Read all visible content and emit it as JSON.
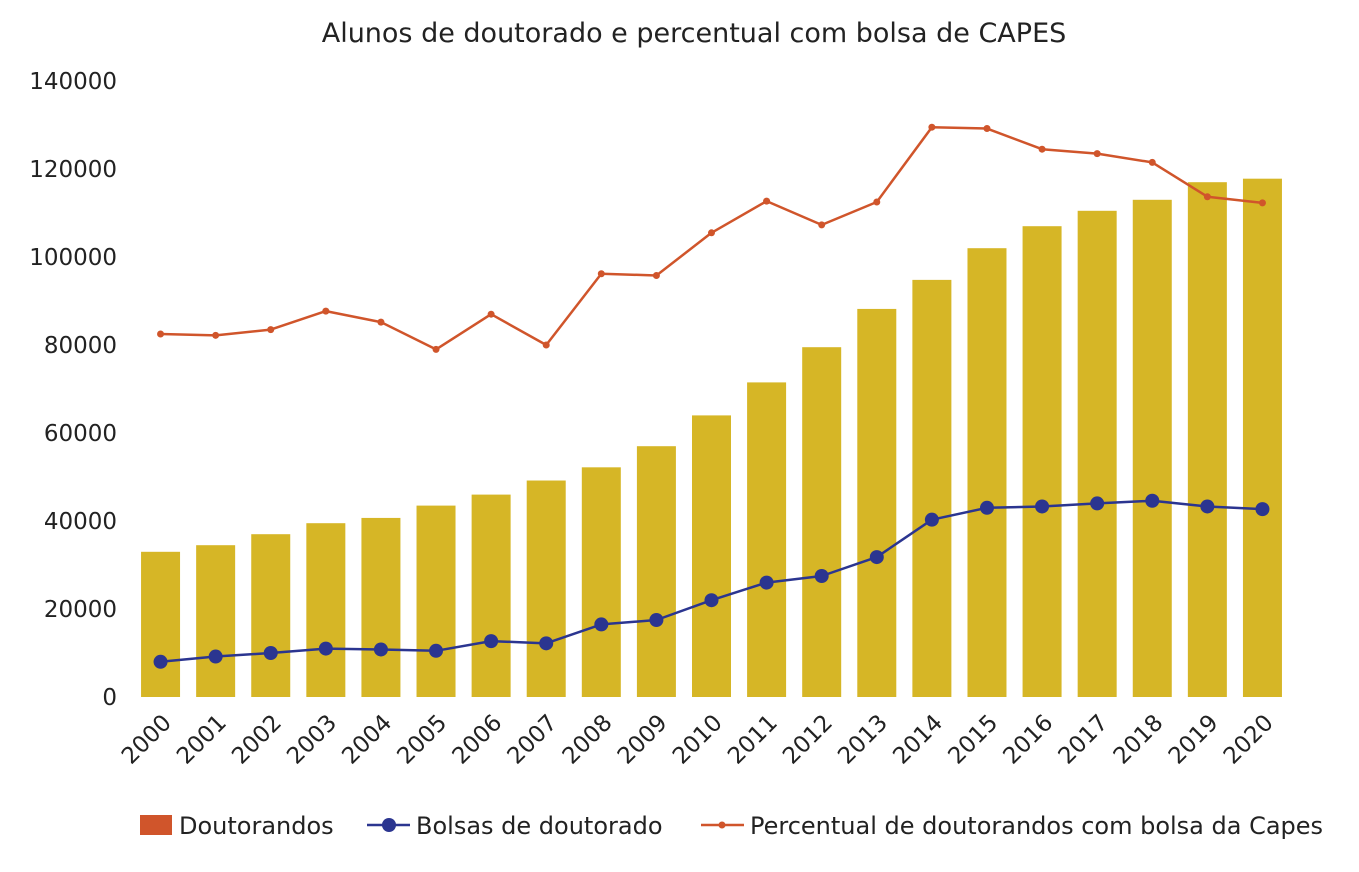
{
  "chart_data": {
    "type": "bar",
    "title": "Alunos de doutorado e percentual com bolsa de CAPES",
    "categories": [
      "2000",
      "2001",
      "2002",
      "2003",
      "2004",
      "2005",
      "2006",
      "2007",
      "2008",
      "2009",
      "2010",
      "2011",
      "2012",
      "2013",
      "2014",
      "2015",
      "2016",
      "2017",
      "2018",
      "2019",
      "2020"
    ],
    "ylim": [
      0,
      140000
    ],
    "yticks": [
      "0",
      "20000",
      "40000",
      "60000",
      "80000",
      "100000",
      "120000",
      "140000"
    ],
    "grid": false,
    "legend_position": "bottom",
    "series": [
      {
        "name": "Doutorandos",
        "type": "bar",
        "color": "#d6b626",
        "legend_color": "#d0552b",
        "values": [
          33000,
          34500,
          37000,
          39500,
          40700,
          43500,
          46000,
          49200,
          52200,
          57000,
          64000,
          71500,
          79500,
          88200,
          94800,
          102000,
          107000,
          110500,
          113000,
          117000,
          117800
        ]
      },
      {
        "name": "Bolsas de doutorado",
        "type": "line",
        "color": "#2b3590",
        "values": [
          8000,
          9200,
          10000,
          11000,
          10800,
          10500,
          12700,
          12200,
          16500,
          17500,
          22000,
          26000,
          27500,
          31800,
          40300,
          43000,
          43300,
          44000,
          44600,
          43300,
          42700
        ]
      },
      {
        "name": "Percentual de doutorandos com bolsa da Capes",
        "type": "line",
        "color": "#d0552b",
        "values": [
          82500,
          82200,
          83500,
          87700,
          85200,
          79000,
          87000,
          80000,
          96200,
          95800,
          105500,
          112700,
          107300,
          112500,
          129500,
          129200,
          124500,
          123500,
          121500,
          113700,
          112300
        ]
      }
    ]
  }
}
